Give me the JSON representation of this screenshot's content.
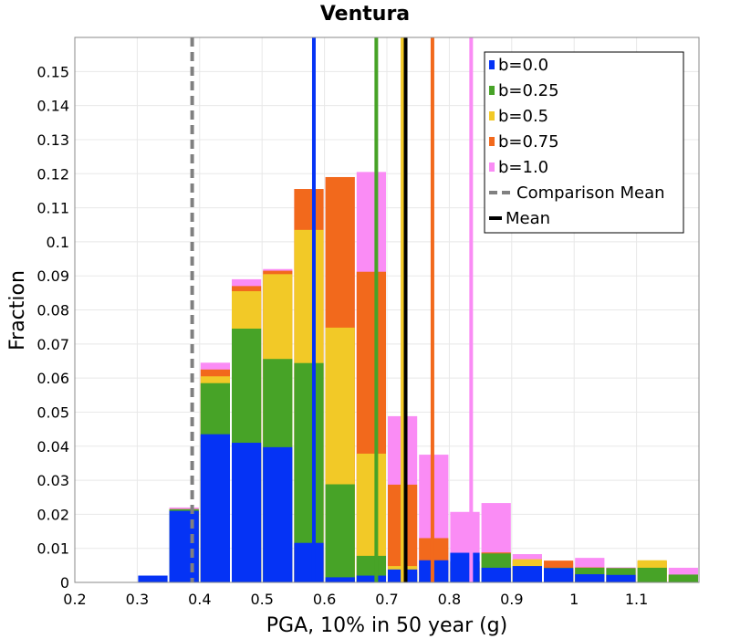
{
  "chart_data": {
    "type": "bar",
    "title": "Ventura",
    "xlabel": "PGA, 10% in 50 year (g)",
    "ylabel": "Fraction",
    "xlim": [
      0.2,
      1.2
    ],
    "ylim": [
      0,
      0.16
    ],
    "xticks": [
      "0.2",
      "0.3",
      "0.4",
      "0.5",
      "0.6",
      "0.7",
      "0.8",
      "0.9",
      "1",
      "1.1"
    ],
    "yticks": [
      "0",
      "0.01",
      "0.02",
      "0.03",
      "0.04",
      "0.05",
      "0.06",
      "0.07",
      "0.08",
      "0.09",
      "0.1",
      "0.11",
      "0.12",
      "0.13",
      "0.14",
      "0.15"
    ],
    "bin_width": 0.05,
    "grid": true,
    "legend_position": "top-right",
    "bins": [
      0.3,
      0.35,
      0.4,
      0.45,
      0.5,
      0.55,
      0.6,
      0.65,
      0.7,
      0.75,
      0.8,
      0.85,
      0.9,
      0.95,
      1.0,
      1.05,
      1.1,
      1.15
    ],
    "series": [
      {
        "name": "b=0.0",
        "color": "#0533f5",
        "values": [
          0.002,
          0.021,
          0.0435,
          0.041,
          0.0397,
          0.0116,
          0.0015,
          0.002,
          0.0038,
          0.0065,
          0.0087,
          0.0043,
          0.0048,
          0.0042,
          0.0024,
          0.0022,
          0,
          0
        ]
      },
      {
        "name": "b=0.25",
        "color": "#47a327",
        "values": [
          0,
          0.0215,
          0.0585,
          0.0745,
          0.0656,
          0.0644,
          0.0288,
          0.0078,
          0.003,
          0.0007,
          0.0062,
          0.0085,
          0.0048,
          0.0043,
          0.0043,
          0.0042,
          0.0043,
          0.0023
        ]
      },
      {
        "name": "b=0.5",
        "color": "#f2c927",
        "values": [
          0,
          0.0215,
          0.0605,
          0.0855,
          0.0905,
          0.1035,
          0.0748,
          0.0378,
          0.0048,
          0.0027,
          0.0043,
          0.0083,
          0.0068,
          0.0023,
          0.0043,
          0.0023,
          0.0065,
          0.0022
        ]
      },
      {
        "name": "b=0.75",
        "color": "#f2691c",
        "values": [
          0,
          0.0215,
          0.0625,
          0.087,
          0.0915,
          0.1155,
          0.119,
          0.0912,
          0.0287,
          0.013,
          0.006,
          0.0088,
          0.0065,
          0.0064,
          0.0044,
          0.0042,
          0.0062,
          0.0022
        ]
      },
      {
        "name": "b=1.0",
        "color": "#fa8cf5",
        "values": [
          0,
          0.022,
          0.0645,
          0.089,
          0.092,
          0.1155,
          0.119,
          0.1205,
          0.0488,
          0.0375,
          0.0207,
          0.0233,
          0.0083,
          0.0057,
          0.0072,
          0.0044,
          0.0045,
          0.0043
        ]
      }
    ],
    "mean_lines": [
      {
        "name": "b=0.0",
        "x": 0.583,
        "color": "#0533f5"
      },
      {
        "name": "b=0.25",
        "x": 0.683,
        "color": "#47a327"
      },
      {
        "name": "b=0.5",
        "x": 0.725,
        "color": "#f2c927"
      },
      {
        "name": "b=0.75",
        "x": 0.773,
        "color": "#f2691c"
      },
      {
        "name": "b=1.0",
        "x": 0.835,
        "color": "#fa8cf5"
      }
    ],
    "comparison_mean": {
      "name": "Comparison Mean",
      "x": 0.388,
      "color": "#808080"
    },
    "overall_mean": {
      "name": "Mean",
      "x": 0.73,
      "color": "#000000"
    }
  }
}
